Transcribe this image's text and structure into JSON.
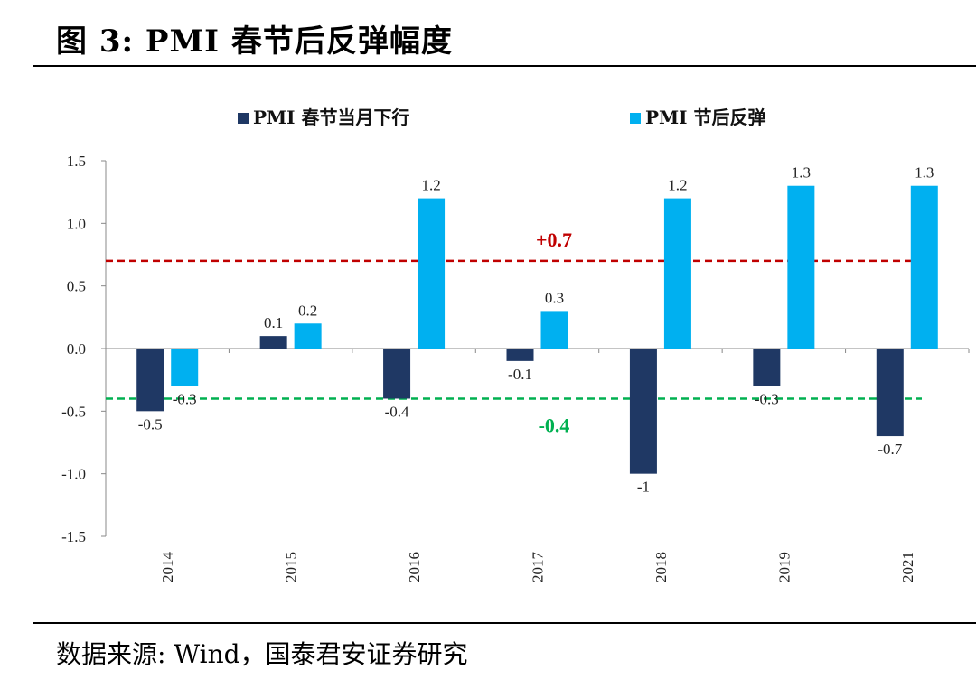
{
  "title": "图 3:  PMI 春节后反弹幅度",
  "source": "数据来源:  Wind，国泰君安证券研究",
  "chart_data": {
    "type": "bar",
    "categories": [
      "2014",
      "2015",
      "2016",
      "2017",
      "2018",
      "2019",
      "2021"
    ],
    "series": [
      {
        "name": "PMI 春节当月下行",
        "color": "#1f3864",
        "values": [
          -0.5,
          0.1,
          -0.4,
          -0.1,
          -1,
          -0.3,
          -0.7
        ],
        "labels": [
          "-0.5",
          "0.1",
          "-0.4",
          "-0.1",
          "-1",
          "-0.3",
          "-0.7"
        ]
      },
      {
        "name": "PMI 节后反弹",
        "color": "#00b0f0",
        "values": [
          -0.3,
          0.2,
          1.2,
          0.3,
          1.2,
          1.3,
          1.3
        ],
        "labels": [
          "-0.3",
          "0.2",
          "1.2",
          "0.3",
          "1.2",
          "1.3",
          "1.3"
        ]
      }
    ],
    "ylim": [
      -1.5,
      1.5
    ],
    "yticks": [
      1.5,
      1.0,
      0.5,
      0.0,
      -0.5,
      -1.0,
      -1.5
    ],
    "ytick_labels": [
      "1.5",
      "1.0",
      "0.5",
      "0.0",
      "-0.5",
      "-1.0",
      "-1.5"
    ],
    "reference_lines": [
      {
        "value": 0.7,
        "label": "+0.7",
        "color": "#c00000",
        "style": "dashed"
      },
      {
        "value": -0.4,
        "label": "-0.4",
        "color": "#00b050",
        "style": "dashed"
      }
    ],
    "legend_position": "top",
    "grid": false,
    "xlabel": "",
    "ylabel": ""
  }
}
